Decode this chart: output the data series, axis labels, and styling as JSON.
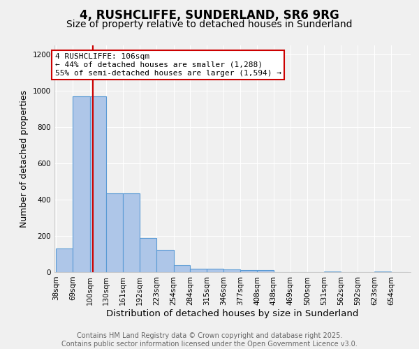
{
  "title": "4, RUSHCLIFFE, SUNDERLAND, SR6 9RG",
  "subtitle": "Size of property relative to detached houses in Sunderland",
  "xlabel": "Distribution of detached houses by size in Sunderland",
  "ylabel": "Number of detached properties",
  "bin_labels": [
    "38sqm",
    "69sqm",
    "100sqm",
    "130sqm",
    "161sqm",
    "192sqm",
    "223sqm",
    "254sqm",
    "284sqm",
    "315sqm",
    "346sqm",
    "377sqm",
    "408sqm",
    "438sqm",
    "469sqm",
    "500sqm",
    "531sqm",
    "562sqm",
    "592sqm",
    "623sqm",
    "654sqm"
  ],
  "bin_edges": [
    38,
    69,
    100,
    130,
    161,
    192,
    223,
    254,
    284,
    315,
    346,
    377,
    408,
    438,
    469,
    500,
    531,
    562,
    592,
    623,
    654
  ],
  "bar_heights": [
    130,
    970,
    970,
    435,
    435,
    190,
    125,
    40,
    20,
    20,
    15,
    10,
    10,
    0,
    0,
    0,
    5,
    0,
    0,
    5,
    0
  ],
  "bar_color": "#aec6e8",
  "bar_edge_color": "#5b9bd5",
  "vline_x": 106,
  "vline_color": "#cc0000",
  "annotation_text": "4 RUSHCLIFFE: 106sqm\n← 44% of detached houses are smaller (1,288)\n55% of semi-detached houses are larger (1,594) →",
  "annotation_box_color": "white",
  "annotation_box_edge_color": "#cc0000",
  "ylim": [
    0,
    1250
  ],
  "yticks": [
    0,
    200,
    400,
    600,
    800,
    1000,
    1200
  ],
  "background_color": "#f0f0f0",
  "footer_text": "Contains HM Land Registry data © Crown copyright and database right 2025.\nContains public sector information licensed under the Open Government Licence v3.0.",
  "title_fontsize": 12,
  "subtitle_fontsize": 10,
  "xlabel_fontsize": 9.5,
  "ylabel_fontsize": 9,
  "annotation_fontsize": 8,
  "footer_fontsize": 7,
  "tick_fontsize": 7.5,
  "grid_color": "white"
}
